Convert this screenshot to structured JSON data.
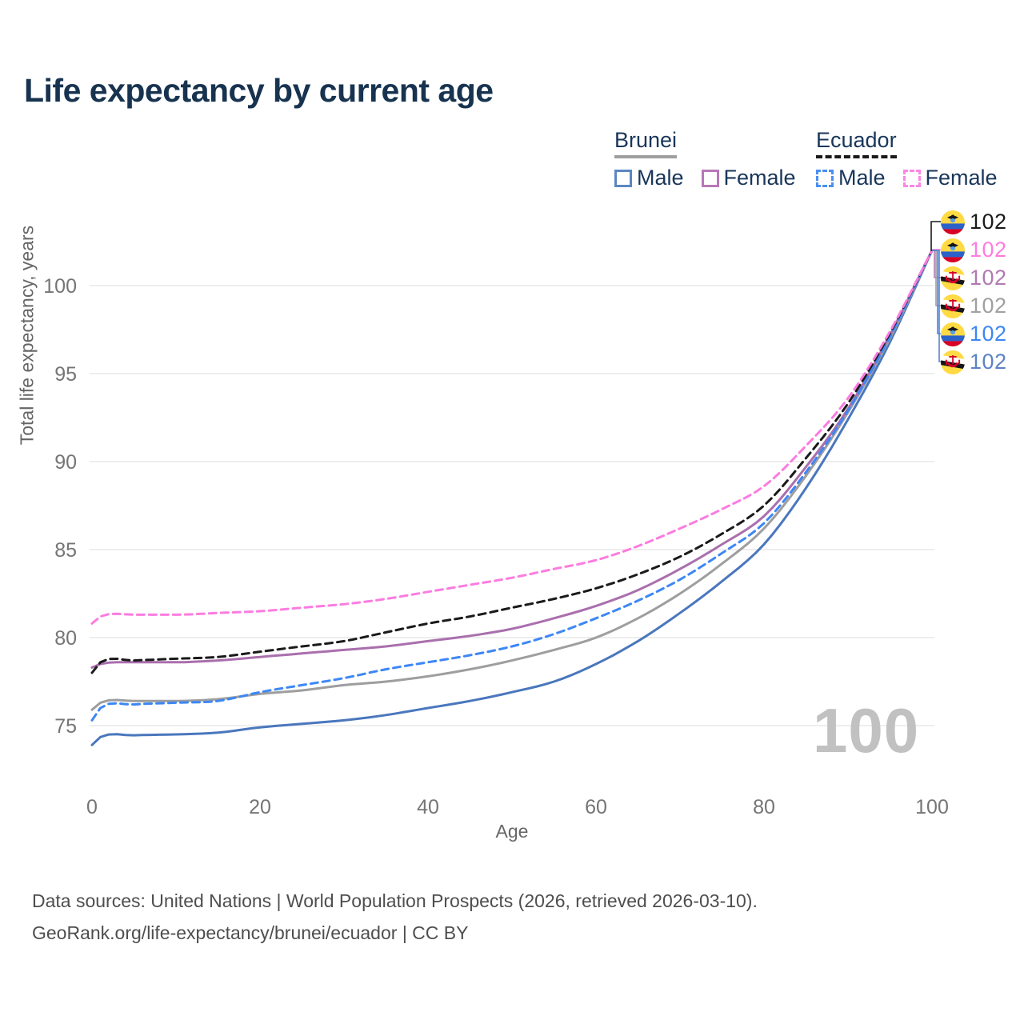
{
  "header": {
    "title": "Life expectancy by current age"
  },
  "legend": {
    "brunei": {
      "name": "Brunei",
      "male_label": "Male",
      "female_label": "Female",
      "male_color": "#5b86c3",
      "female_color": "#b678b6",
      "rule_color": "#9e9e9e",
      "rule_style": "solid"
    },
    "ecuador": {
      "name": "Ecuador",
      "male_label": "Male",
      "female_label": "Female",
      "male_color": "#4a8ff2",
      "female_color": "#fb86e4",
      "rule_color": "#1a1a1a",
      "rule_style": "dashed"
    }
  },
  "axes": {
    "x_title": "Age",
    "y_title": "Total life expectancy, years",
    "x_ticks": [
      0,
      20,
      40,
      60,
      80,
      100
    ],
    "y_ticks": [
      75,
      80,
      85,
      90,
      95,
      100
    ]
  },
  "watermark": "100",
  "footer": {
    "line1": "Data sources: United Nations | World Population Prospects (2026, retrieved 2026-03-10).",
    "line2": "GeoRank.org/life-expectancy/brunei/ecuador | CC BY"
  },
  "chart_data": {
    "type": "line",
    "title": "Life expectancy by current age",
    "xlabel": "Age",
    "ylabel": "Total life expectancy, years",
    "x_ticks": [
      0,
      20,
      40,
      60,
      80,
      100
    ],
    "y_ticks": [
      75,
      80,
      85,
      90,
      95,
      100
    ],
    "xlim": [
      0,
      100
    ],
    "ylim": [
      73,
      103
    ],
    "grid": "horizontal",
    "legend_position": "top-right",
    "control_ages": [
      0,
      1,
      5,
      10,
      15,
      20,
      25,
      30,
      35,
      40,
      45,
      50,
      55,
      60,
      65,
      70,
      75,
      80,
      85,
      90,
      95,
      100
    ],
    "series": [
      {
        "name": "Brunei Male",
        "country": "Brunei",
        "sex": "Male",
        "style": "solid",
        "color": "#4a77bd",
        "values": [
          73.9,
          74.35,
          74.45,
          74.5,
          74.6,
          74.9,
          75.1,
          75.3,
          75.6,
          76.0,
          76.4,
          76.9,
          77.5,
          78.5,
          79.8,
          81.4,
          83.2,
          85.3,
          88.5,
          92.4,
          96.8,
          102
        ],
        "end_label_row": 5
      },
      {
        "name": "Brunei Total",
        "country": "Brunei",
        "sex": "Both sexes",
        "style": "solid",
        "color": "#9e9e9e",
        "values": [
          75.9,
          76.3,
          76.4,
          76.4,
          76.5,
          76.8,
          77.0,
          77.3,
          77.5,
          77.8,
          78.2,
          78.7,
          79.3,
          80.0,
          81.1,
          82.5,
          84.2,
          86.2,
          89.2,
          92.8,
          97.0,
          102
        ],
        "end_label_row": 3
      },
      {
        "name": "Brunei Female",
        "country": "Brunei",
        "sex": "Female",
        "style": "solid",
        "color": "#aa6fad",
        "values": [
          78.3,
          78.5,
          78.6,
          78.6,
          78.7,
          78.9,
          79.1,
          79.3,
          79.5,
          79.8,
          80.1,
          80.5,
          81.1,
          81.8,
          82.7,
          83.9,
          85.3,
          86.9,
          89.7,
          93.0,
          97.2,
          102
        ],
        "end_label_row": 2
      },
      {
        "name": "Ecuador Male",
        "country": "Ecuador",
        "sex": "Male",
        "style": "dashed",
        "color": "#3d87f5",
        "values": [
          75.3,
          76.0,
          76.2,
          76.3,
          76.4,
          76.9,
          77.3,
          77.7,
          78.2,
          78.6,
          79.0,
          79.5,
          80.2,
          81.1,
          82.1,
          83.3,
          84.8,
          86.5,
          89.4,
          92.9,
          97.1,
          102
        ],
        "end_label_row": 4
      },
      {
        "name": "Ecuador Total",
        "country": "Ecuador",
        "sex": "Both sexes",
        "style": "dashed",
        "color": "#1a1a1a",
        "values": [
          78.0,
          78.6,
          78.7,
          78.8,
          78.9,
          79.2,
          79.5,
          79.8,
          80.3,
          80.8,
          81.2,
          81.7,
          82.2,
          82.8,
          83.6,
          84.6,
          85.9,
          87.5,
          90.2,
          93.3,
          97.3,
          102
        ],
        "end_label_row": 0
      },
      {
        "name": "Ecuador Female",
        "country": "Ecuador",
        "sex": "Female",
        "style": "dashed",
        "color": "#fb7ce0",
        "values": [
          80.8,
          81.2,
          81.3,
          81.3,
          81.4,
          81.5,
          81.7,
          81.9,
          82.2,
          82.6,
          83.0,
          83.4,
          83.9,
          84.4,
          85.2,
          86.2,
          87.3,
          88.6,
          90.9,
          93.6,
          97.4,
          102
        ],
        "end_label_row": 1
      }
    ],
    "end_labels": [
      {
        "flag": "ecuador-flag",
        "value": "102",
        "color": "#1a1a1a"
      },
      {
        "flag": "ecuador-flag",
        "value": "102",
        "color": "#ff7ce0"
      },
      {
        "flag": "brunei-flag",
        "value": "102",
        "color": "#b07ab0"
      },
      {
        "flag": "brunei-flag",
        "value": "102",
        "color": "#a0a0a0"
      },
      {
        "flag": "ecuador-flag",
        "value": "102",
        "color": "#3d87f5"
      },
      {
        "flag": "brunei-flag",
        "value": "102",
        "color": "#5c82c6"
      }
    ]
  }
}
